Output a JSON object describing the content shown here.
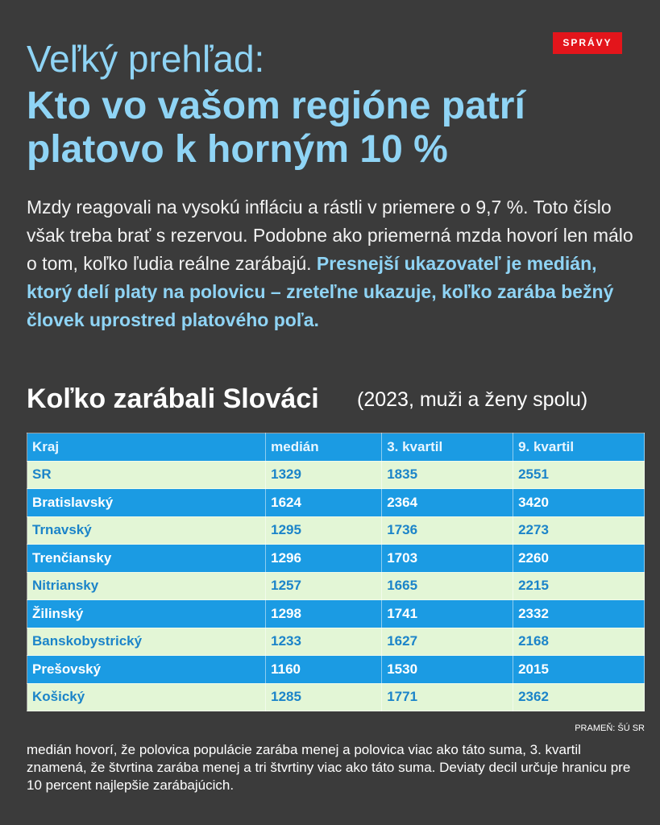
{
  "header": {
    "logo": "SPRÁVY",
    "title_line1": "Veľký prehľad:",
    "title_line2": "Kto vo vašom regióne patrí",
    "title_line3": "platovo k horným 10 %"
  },
  "intro": {
    "text": "Mzdy reagovali na vysokú infláciu a rástli v priemere o 9,7 %. Toto číslo však treba brať s rezervou. Podobne ako priemerná mzda hovorí len málo o tom, koľko ľudia reálne zarábajú.",
    "highlight": "Presnejší ukazovateľ je medián, ktorý delí platy na polovicu – zreteľne ukazuje, koľko zarába bežný človek uprostred platového poľa."
  },
  "table": {
    "title": "Koľko zarábali Slováci",
    "subtitle": "(2023, muži a ženy spolu)",
    "columns": [
      "Kraj",
      "medián",
      "3. kvartil",
      "9. kvartil"
    ],
    "rows": [
      [
        "SR",
        1329,
        1835,
        2551
      ],
      [
        "Bratislavský",
        1624,
        2364,
        3420
      ],
      [
        "Trnavský",
        1295,
        1736,
        2273
      ],
      [
        "Trenčiansky",
        1296,
        1703,
        2260
      ],
      [
        "Nitriansky",
        1257,
        1665,
        2215
      ],
      [
        "Žilinský",
        1298,
        1741,
        2332
      ],
      [
        "Banskobystrický",
        1233,
        1627,
        2168
      ],
      [
        "Prešovský",
        1160,
        1530,
        2015
      ],
      [
        "Košický",
        1285,
        1771,
        2362
      ]
    ],
    "source": "PRAMEŇ: ŠÚ SR"
  },
  "footnote": "medián hovorí, že polovica populácie zarába menej a polovica viac ako táto suma, 3. kvartil znamená, že štvrtina zarába menej a tri štvrtiny viac ako táto suma.  Deviaty decil určuje hranicu pre 10  percent najlepšie zarábajúcich."
}
